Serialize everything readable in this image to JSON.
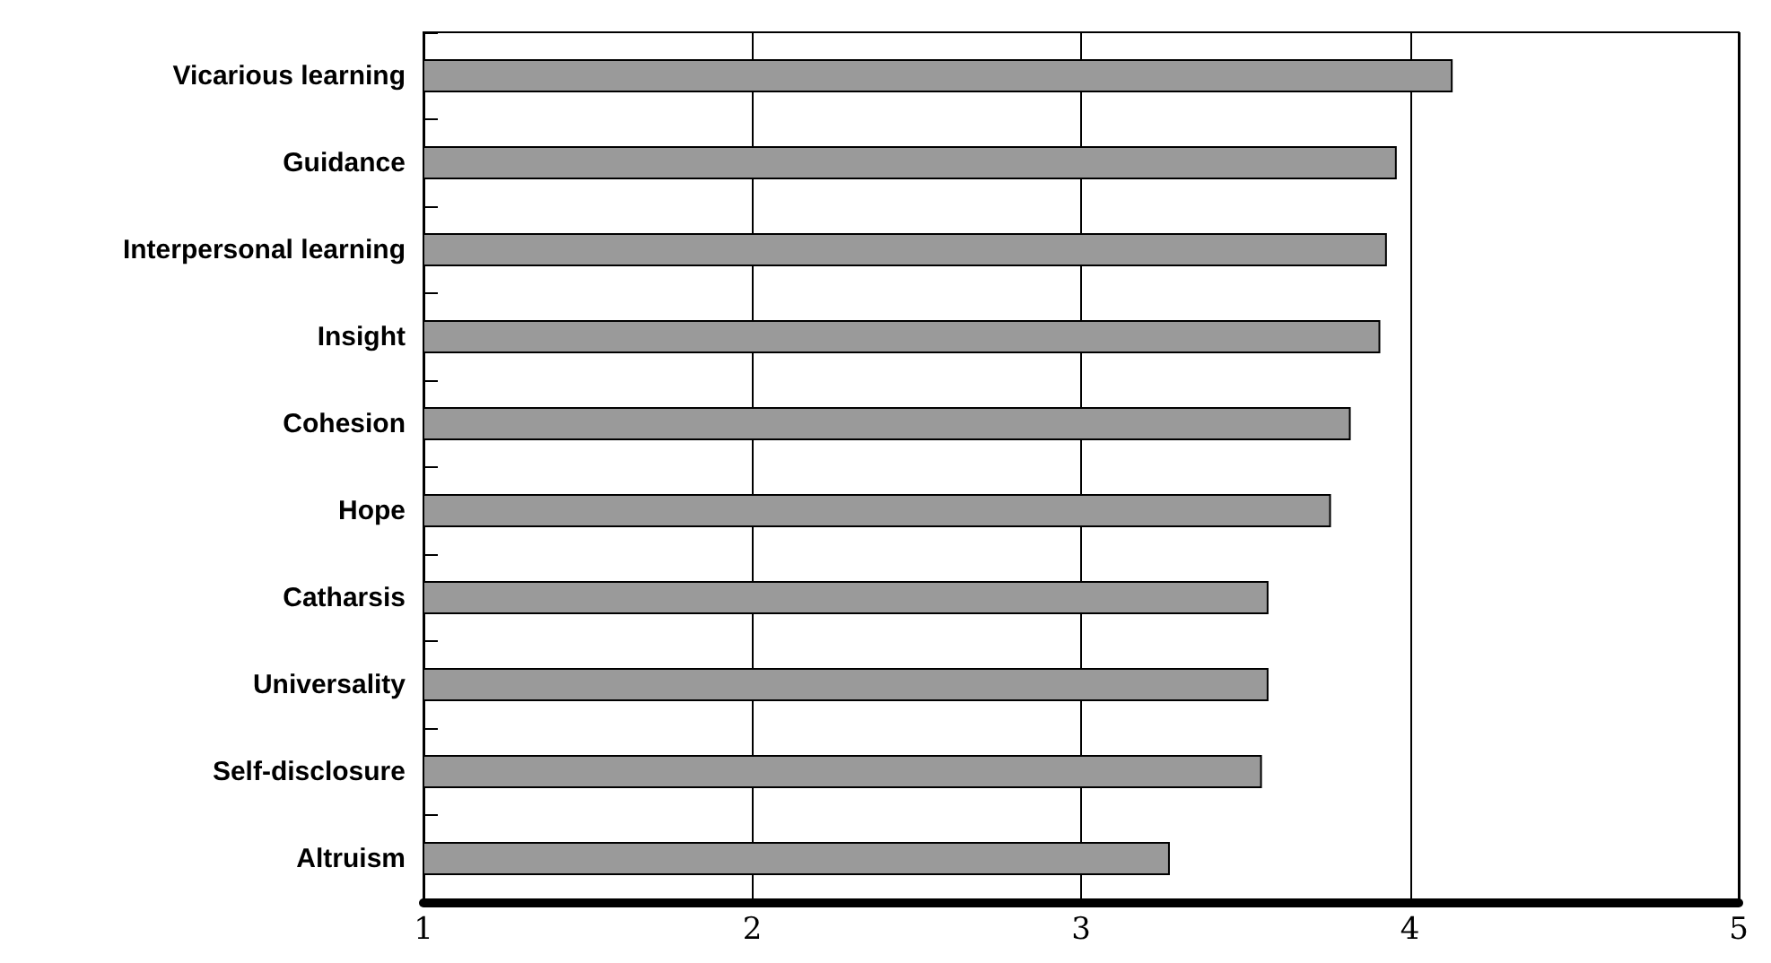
{
  "chart_data": {
    "type": "bar",
    "orientation": "horizontal",
    "categories": [
      "Vicarious learning",
      "Guidance",
      "Interpersonal learning",
      "Insight",
      "Cohesion",
      "Hope",
      "Catharsis",
      "Universality",
      "Self-disclosure",
      "Altruism"
    ],
    "values": [
      4.13,
      3.96,
      3.93,
      3.91,
      3.82,
      3.76,
      3.57,
      3.57,
      3.55,
      3.27
    ],
    "color": "#9a9a9a",
    "xlim": [
      1,
      5
    ],
    "xticks": [
      1,
      2,
      3,
      4,
      5
    ],
    "grid": "x"
  }
}
